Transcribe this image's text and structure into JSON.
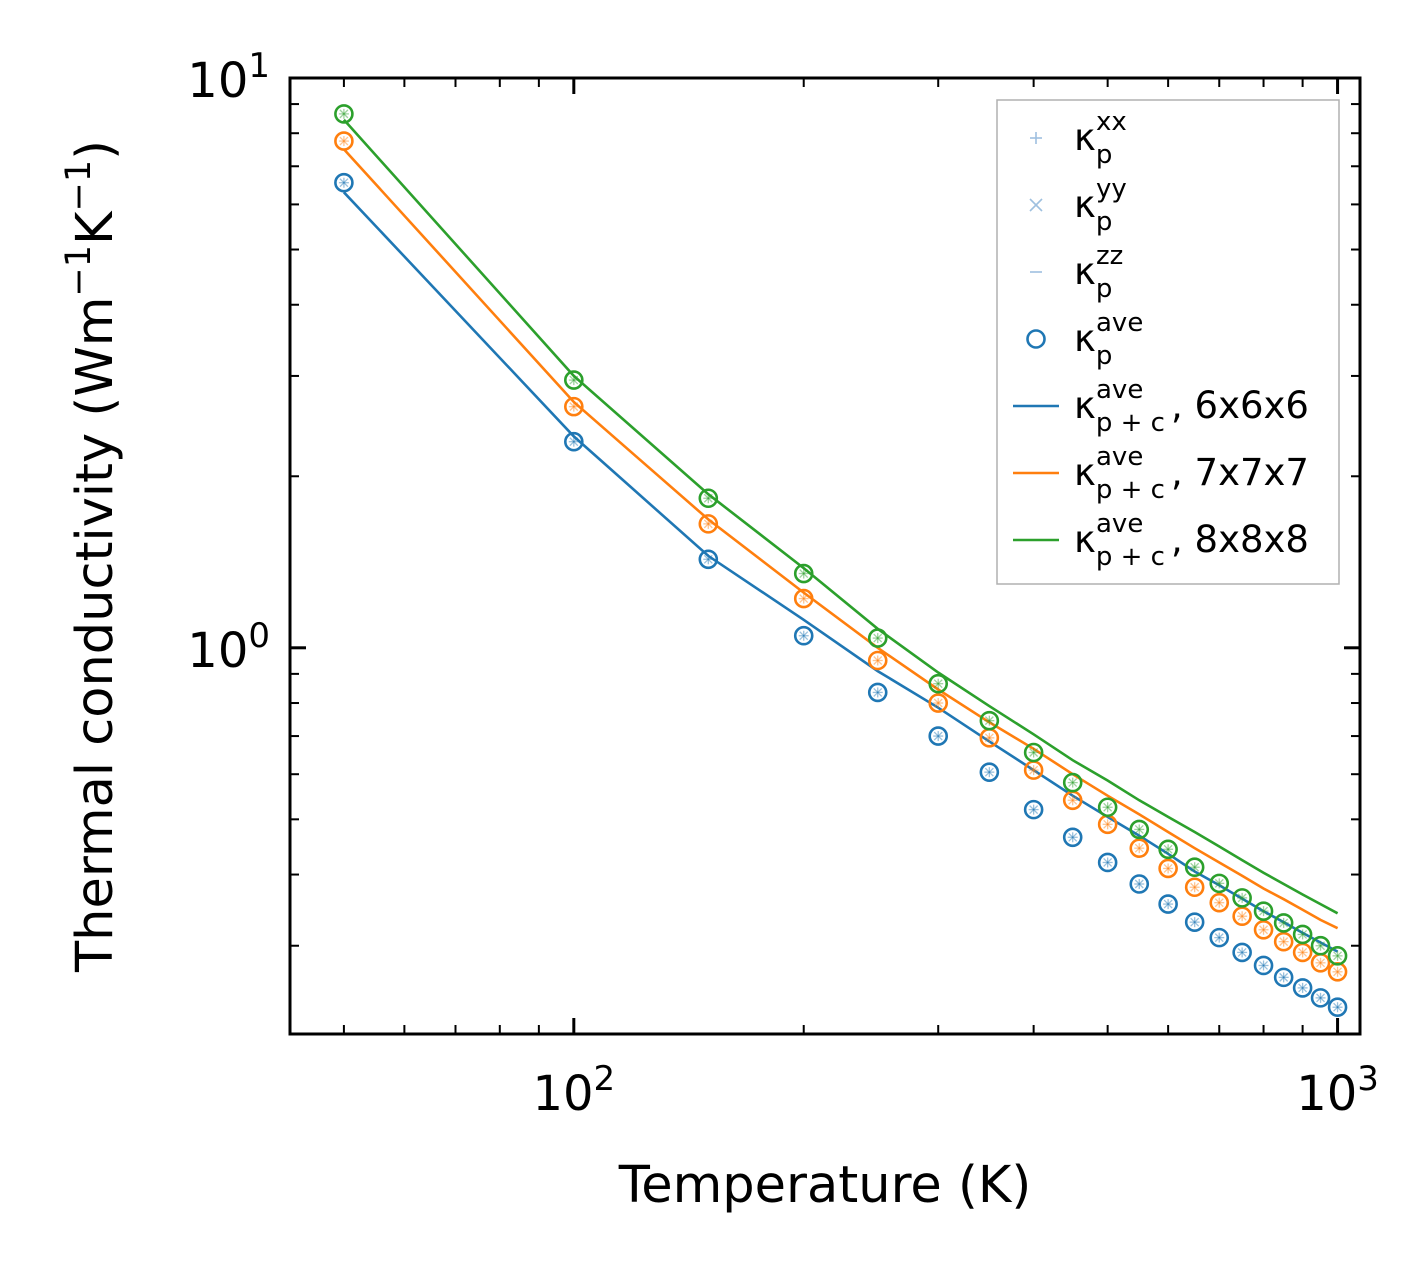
{
  "chart_data": {
    "type": "scatter",
    "xlabel": "Temperature (K)",
    "ylabel": {
      "prefix": "Thermal conductivity (Wm",
      "exp1": "−1",
      "mid": "K",
      "exp2": "−1",
      "suffix": ")"
    },
    "xscale": "log",
    "yscale": "log",
    "xlim": [
      42.5,
      1070
    ],
    "ylim": [
      0.21,
      10
    ],
    "x_ticks": [
      {
        "value": 100,
        "base": "10",
        "exp": "2"
      },
      {
        "value": 1000,
        "base": "10",
        "exp": "3"
      }
    ],
    "y_ticks": [
      {
        "value": 1,
        "base": "10",
        "exp": "0"
      },
      {
        "value": 10,
        "base": "10",
        "exp": "1"
      }
    ],
    "x": [
      50,
      100,
      150,
      200,
      250,
      300,
      350,
      400,
      450,
      500,
      550,
      600,
      650,
      700,
      750,
      800,
      850,
      900,
      950,
      1000
    ],
    "series": [
      {
        "name": "6x6x6",
        "color": "#1f77b4",
        "kappa_p_ave": [
          6.55,
          2.3,
          1.43,
          1.05,
          0.835,
          0.7,
          0.605,
          0.52,
          0.465,
          0.42,
          0.385,
          0.355,
          0.33,
          0.31,
          0.292,
          0.277,
          0.264,
          0.253,
          0.243,
          0.234
        ],
        "kappa_pc_ave": [
          6.3,
          2.35,
          1.45,
          1.12,
          0.91,
          0.785,
          0.685,
          0.61,
          0.55,
          0.505,
          0.468,
          0.435,
          0.405,
          0.383,
          0.363,
          0.345,
          0.33,
          0.316,
          0.304,
          0.293
        ]
      },
      {
        "name": "7x7x7",
        "color": "#ff7f0e",
        "kappa_p_ave": [
          7.75,
          2.65,
          1.65,
          1.22,
          0.95,
          0.8,
          0.695,
          0.61,
          0.54,
          0.49,
          0.445,
          0.41,
          0.38,
          0.357,
          0.338,
          0.32,
          0.305,
          0.292,
          0.28,
          0.27
        ],
        "kappa_pc_ave": [
          7.5,
          2.7,
          1.68,
          1.25,
          1.0,
          0.845,
          0.74,
          0.665,
          0.6,
          0.55,
          0.51,
          0.475,
          0.445,
          0.42,
          0.398,
          0.378,
          0.362,
          0.347,
          0.333,
          0.322
        ]
      },
      {
        "name": "8x8x8",
        "color": "#2ca02c",
        "kappa_p_ave": [
          8.65,
          2.95,
          1.83,
          1.35,
          1.04,
          0.865,
          0.745,
          0.655,
          0.58,
          0.525,
          0.48,
          0.443,
          0.412,
          0.386,
          0.364,
          0.345,
          0.329,
          0.314,
          0.3,
          0.288
        ],
        "kappa_pc_ave": [
          8.45,
          3.0,
          1.86,
          1.38,
          1.08,
          0.905,
          0.79,
          0.705,
          0.635,
          0.585,
          0.54,
          0.505,
          0.475,
          0.448,
          0.424,
          0.403,
          0.385,
          0.369,
          0.355,
          0.342
        ]
      }
    ],
    "legend": {
      "placement": "top-right",
      "entries": [
        {
          "marker": "+",
          "kappa": "κ",
          "sub": "p",
          "sup": "xx",
          "label": ""
        },
        {
          "marker": "×",
          "kappa": "κ",
          "sub": "p",
          "sup": "yy",
          "label": ""
        },
        {
          "marker": "−",
          "kappa": "κ",
          "sub": "p",
          "sup": "zz",
          "label": ""
        },
        {
          "marker": "o",
          "kappa": "κ",
          "sub": "p",
          "sup": "ave",
          "label": ""
        },
        {
          "marker": "line",
          "kappa": "κ",
          "sub": "p + c",
          "sup": "ave",
          "label": ", 6x6x6",
          "color": "#1f77b4"
        },
        {
          "marker": "line",
          "kappa": "κ",
          "sub": "p + c",
          "sup": "ave",
          "label": ", 7x7x7",
          "color": "#ff7f0e"
        },
        {
          "marker": "line",
          "kappa": "κ",
          "sub": "p + c",
          "sup": "ave",
          "label": ", 8x8x8",
          "color": "#2ca02c"
        }
      ]
    },
    "grid": false
  }
}
